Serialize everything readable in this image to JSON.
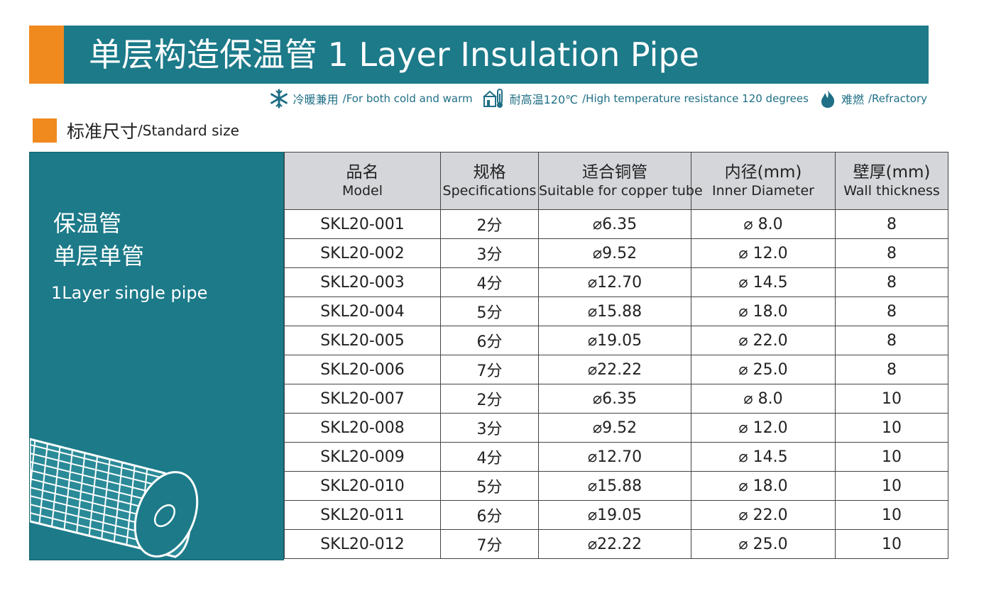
{
  "header": {
    "title": "单层构造保温管 1 Layer Insulation Pipe"
  },
  "features": [
    {
      "icon": "snowflake-icon",
      "zh": "冷暖兼用",
      "en": "/For both cold and warm"
    },
    {
      "icon": "thermometer-icon",
      "zh": "耐高温120℃",
      "en": "/High temperature resistance 120 degrees"
    },
    {
      "icon": "flame-icon",
      "zh": "难燃",
      "en": "/Refractory"
    }
  ],
  "section": {
    "zh": "标准尺寸",
    "en": "/Standard size"
  },
  "panel": {
    "line1": "保温管",
    "line2": "单层单管",
    "line3": "1Layer single pipe"
  },
  "table": {
    "headers": [
      {
        "zh": "品名",
        "en": "Model"
      },
      {
        "zh": "规格",
        "en": "Specifications"
      },
      {
        "zh": "适合铜管",
        "en": "Suitable for copper tube"
      },
      {
        "zh": "内径(mm)",
        "en": "Inner Diameter"
      },
      {
        "zh": "壁厚(mm)",
        "en": "Wall thickness"
      }
    ],
    "rows": [
      [
        "SKL20-001",
        "2分",
        "⌀6.35",
        "⌀ 8.0",
        "8"
      ],
      [
        "SKL20-002",
        "3分",
        "⌀9.52",
        "⌀ 12.0",
        "8"
      ],
      [
        "SKL20-003",
        "4分",
        "⌀12.70",
        "⌀ 14.5",
        "8"
      ],
      [
        "SKL20-004",
        "5分",
        "⌀15.88",
        "⌀ 18.0",
        "8"
      ],
      [
        "SKL20-005",
        "6分",
        "⌀19.05",
        "⌀ 22.0",
        "8"
      ],
      [
        "SKL20-006",
        "7分",
        "⌀22.22",
        "⌀ 25.0",
        "8"
      ],
      [
        "SKL20-007",
        "2分",
        "⌀6.35",
        "⌀ 8.0",
        "10"
      ],
      [
        "SKL20-008",
        "3分",
        "⌀9.52",
        "⌀ 12.0",
        "10"
      ],
      [
        "SKL20-009",
        "4分",
        "⌀12.70",
        "⌀ 14.5",
        "10"
      ],
      [
        "SKL20-010",
        "5分",
        "⌀15.88",
        "⌀ 18.0",
        "10"
      ],
      [
        "SKL20-011",
        "6分",
        "⌀19.05",
        "⌀ 22.0",
        "10"
      ],
      [
        "SKL20-012",
        "7分",
        "⌀22.22",
        "⌀ 25.0",
        "10"
      ]
    ]
  },
  "colors": {
    "teal": "#1c7a89",
    "orange": "#f08a1f",
    "header_gray": "#d4d6d9"
  }
}
